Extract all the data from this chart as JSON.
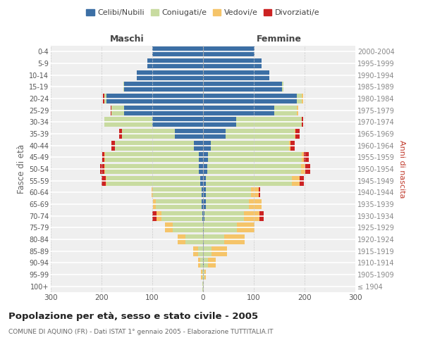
{
  "age_groups": [
    "100+",
    "95-99",
    "90-94",
    "85-89",
    "80-84",
    "75-79",
    "70-74",
    "65-69",
    "60-64",
    "55-59",
    "50-54",
    "45-49",
    "40-44",
    "35-39",
    "30-34",
    "25-29",
    "20-24",
    "15-19",
    "10-14",
    "5-9",
    "0-4"
  ],
  "birth_years": [
    "≤ 1904",
    "1905-1909",
    "1910-1914",
    "1915-1919",
    "1920-1924",
    "1925-1929",
    "1930-1934",
    "1935-1939",
    "1940-1944",
    "1945-1949",
    "1950-1954",
    "1955-1959",
    "1960-1964",
    "1965-1969",
    "1970-1974",
    "1975-1979",
    "1980-1984",
    "1985-1989",
    "1990-1994",
    "1995-1999",
    "2000-2004"
  ],
  "maschi": {
    "celibi": [
      0,
      0,
      0,
      0,
      0,
      0,
      2,
      3,
      3,
      5,
      8,
      8,
      18,
      55,
      100,
      155,
      190,
      155,
      130,
      110,
      100
    ],
    "coniugati": [
      1,
      2,
      5,
      10,
      35,
      60,
      80,
      90,
      95,
      185,
      185,
      185,
      155,
      105,
      95,
      25,
      5,
      2,
      0,
      0,
      0
    ],
    "vedovi": [
      0,
      2,
      5,
      10,
      15,
      15,
      10,
      5,
      3,
      2,
      2,
      1,
      0,
      0,
      0,
      0,
      0,
      0,
      0,
      0,
      0
    ],
    "divorziati": [
      0,
      0,
      0,
      0,
      0,
      0,
      8,
      0,
      0,
      8,
      8,
      5,
      8,
      5,
      0,
      2,
      2,
      0,
      0,
      0,
      0
    ]
  },
  "femmine": {
    "nubili": [
      0,
      0,
      2,
      2,
      2,
      2,
      3,
      5,
      5,
      5,
      8,
      10,
      15,
      45,
      65,
      140,
      185,
      155,
      130,
      115,
      102
    ],
    "coniugate": [
      1,
      3,
      8,
      15,
      40,
      65,
      78,
      85,
      90,
      170,
      185,
      185,
      155,
      135,
      130,
      45,
      10,
      3,
      0,
      0,
      0
    ],
    "vedove": [
      0,
      3,
      15,
      30,
      40,
      35,
      30,
      25,
      15,
      15,
      8,
      3,
      2,
      2,
      0,
      2,
      2,
      0,
      0,
      0,
      0
    ],
    "divorziate": [
      0,
      0,
      0,
      0,
      0,
      0,
      8,
      0,
      3,
      8,
      10,
      10,
      8,
      8,
      2,
      0,
      0,
      0,
      0,
      0,
      0
    ]
  },
  "colors": {
    "celibi": "#3c6fa5",
    "coniugati": "#c8dba0",
    "vedovi": "#f5c469",
    "divorziati": "#cc2222"
  },
  "title": "Popolazione per età, sesso e stato civile - 2005",
  "subtitle": "COMUNE DI AQUINO (FR) - Dati ISTAT 1° gennaio 2005 - Elaborazione TUTTITALIA.IT",
  "xlabel_maschi": "Maschi",
  "xlabel_femmine": "Femmine",
  "ylabel_left": "Fasce di età",
  "ylabel_right": "Anni di nascita",
  "xlim": 300,
  "bg_color": "#ffffff",
  "plot_bg": "#efefef"
}
